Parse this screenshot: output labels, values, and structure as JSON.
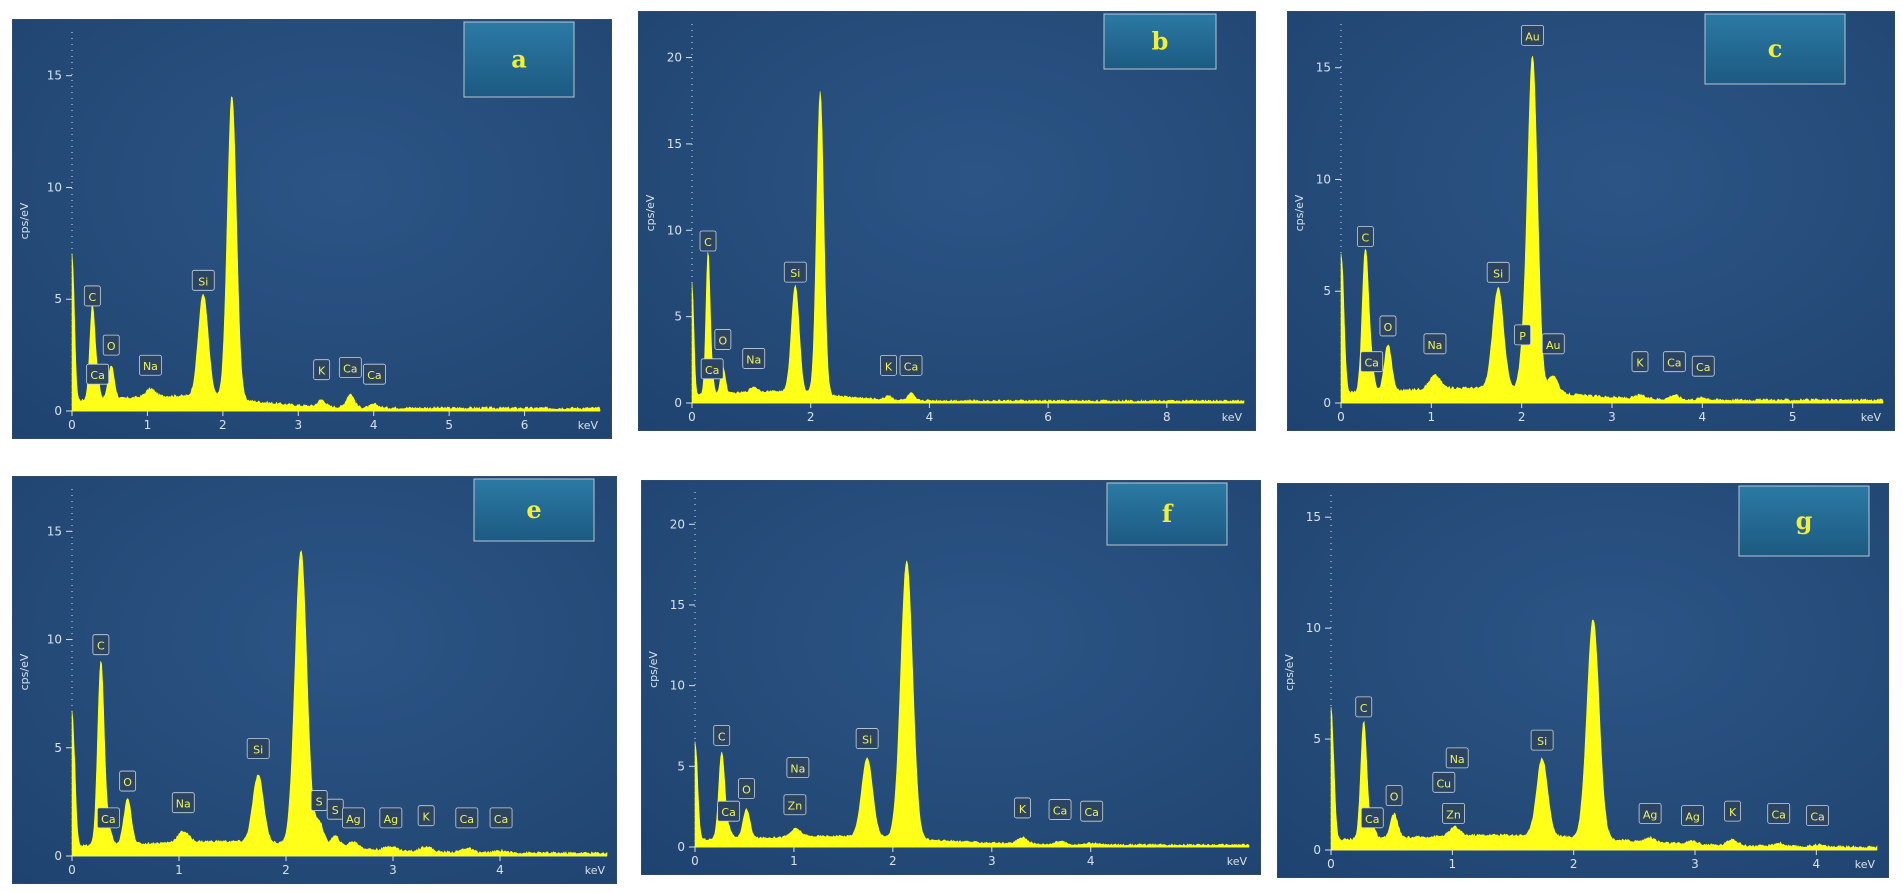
{
  "colors": {
    "background": "#1f4370",
    "spectrum": "#ffff1a",
    "axis": "#d8e0ea",
    "tag_fill": "#2a4462",
    "tag_stroke": "#c9d3de",
    "tag_text": "#f2f261",
    "badge_fill": "#1c5a82",
    "badge_text": "#f2ee3a"
  },
  "chart_data": [
    {
      "id": "a",
      "type": "area",
      "panel_label": "a",
      "ylabel": "cps/eV",
      "xunit": "keV",
      "xlim": [
        0,
        7
      ],
      "ylim": [
        0,
        17
      ],
      "xticks": [
        0,
        1,
        2,
        3,
        4,
        5,
        6
      ],
      "yticks": [
        0,
        5,
        10,
        15
      ],
      "peaks": [
        {
          "x": 0.0,
          "y": 7.0,
          "w": 0.03
        },
        {
          "x": 0.27,
          "y": 4.2,
          "w": 0.035
        },
        {
          "x": 0.34,
          "y": 0.8,
          "w": 0.03
        },
        {
          "x": 0.52,
          "y": 1.5,
          "w": 0.04
        },
        {
          "x": 1.04,
          "y": 0.35,
          "w": 0.06
        },
        {
          "x": 1.74,
          "y": 4.6,
          "w": 0.065
        },
        {
          "x": 2.12,
          "y": 13.6,
          "w": 0.06
        },
        {
          "x": 3.31,
          "y": 0.3,
          "w": 0.05
        },
        {
          "x": 3.69,
          "y": 0.6,
          "w": 0.05
        },
        {
          "x": 4.01,
          "y": 0.15,
          "w": 0.05
        }
      ],
      "tags": [
        {
          "label": "C",
          "x": 0.27,
          "y": 4.7
        },
        {
          "label": "Ca",
          "x": 0.34,
          "y": 1.2
        },
        {
          "label": "O",
          "x": 0.52,
          "y": 2.5
        },
        {
          "label": "Na",
          "x": 1.04,
          "y": 1.6
        },
        {
          "label": "Si",
          "x": 1.74,
          "y": 5.4
        },
        {
          "label": "K",
          "x": 3.31,
          "y": 1.4
        },
        {
          "label": "Ca",
          "x": 3.69,
          "y": 1.5
        },
        {
          "label": "Ca",
          "x": 4.01,
          "y": 1.2
        }
      ]
    },
    {
      "id": "b",
      "type": "area",
      "panel_label": "b",
      "ylabel": "cps/eV",
      "xunit": "keV",
      "xlim": [
        0,
        9.3
      ],
      "ylim": [
        0,
        22
      ],
      "xticks": [
        0,
        2,
        4,
        6,
        8
      ],
      "yticks": [
        0,
        5,
        10,
        15,
        20
      ],
      "peaks": [
        {
          "x": 0.0,
          "y": 7.0,
          "w": 0.03
        },
        {
          "x": 0.27,
          "y": 8.3,
          "w": 0.035
        },
        {
          "x": 0.34,
          "y": 0.8,
          "w": 0.03
        },
        {
          "x": 0.52,
          "y": 1.6,
          "w": 0.04
        },
        {
          "x": 1.04,
          "y": 0.3,
          "w": 0.06
        },
        {
          "x": 1.74,
          "y": 6.2,
          "w": 0.065
        },
        {
          "x": 2.16,
          "y": 17.5,
          "w": 0.06
        },
        {
          "x": 3.31,
          "y": 0.25,
          "w": 0.05
        },
        {
          "x": 3.69,
          "y": 0.4,
          "w": 0.05
        }
      ],
      "tags": [
        {
          "label": "C",
          "x": 0.27,
          "y": 8.8
        },
        {
          "label": "Ca",
          "x": 0.34,
          "y": 1.4
        },
        {
          "label": "O",
          "x": 0.52,
          "y": 3.1
        },
        {
          "label": "Na",
          "x": 1.04,
          "y": 2.0
        },
        {
          "label": "Si",
          "x": 1.74,
          "y": 7.0
        },
        {
          "label": "K",
          "x": 3.31,
          "y": 1.6
        },
        {
          "label": "Ca",
          "x": 3.69,
          "y": 1.6
        }
      ]
    },
    {
      "id": "c",
      "type": "area",
      "panel_label": "c",
      "ylabel": "cps/eV",
      "xunit": "keV",
      "xlim": [
        0,
        6
      ],
      "ylim": [
        0,
        17
      ],
      "xticks": [
        0,
        1,
        2,
        3,
        4,
        5
      ],
      "yticks": [
        0,
        5,
        10,
        15
      ],
      "peaks": [
        {
          "x": 0.0,
          "y": 6.7,
          "w": 0.03
        },
        {
          "x": 0.27,
          "y": 6.4,
          "w": 0.035
        },
        {
          "x": 0.34,
          "y": 1.0,
          "w": 0.03
        },
        {
          "x": 0.52,
          "y": 2.1,
          "w": 0.04
        },
        {
          "x": 1.04,
          "y": 0.6,
          "w": 0.06
        },
        {
          "x": 1.74,
          "y": 4.5,
          "w": 0.06
        },
        {
          "x": 2.01,
          "y": 1.0,
          "w": 0.04
        },
        {
          "x": 2.12,
          "y": 15.0,
          "w": 0.055
        },
        {
          "x": 2.35,
          "y": 0.8,
          "w": 0.05
        },
        {
          "x": 3.31,
          "y": 0.15,
          "w": 0.05
        },
        {
          "x": 3.69,
          "y": 0.2,
          "w": 0.05
        },
        {
          "x": 4.01,
          "y": 0.1,
          "w": 0.05
        }
      ],
      "tags": [
        {
          "label": "Au",
          "x": 2.12,
          "y": 16.0
        },
        {
          "label": "C",
          "x": 0.27,
          "y": 7.0
        },
        {
          "label": "Ca",
          "x": 0.34,
          "y": 1.4
        },
        {
          "label": "O",
          "x": 0.52,
          "y": 3.0
        },
        {
          "label": "Na",
          "x": 1.04,
          "y": 2.2
        },
        {
          "label": "Si",
          "x": 1.74,
          "y": 5.4
        },
        {
          "label": "P",
          "x": 2.01,
          "y": 2.6
        },
        {
          "label": "Au",
          "x": 2.35,
          "y": 2.2
        },
        {
          "label": "K",
          "x": 3.31,
          "y": 1.4
        },
        {
          "label": "Ca",
          "x": 3.69,
          "y": 1.4
        },
        {
          "label": "Ca",
          "x": 4.01,
          "y": 1.2
        }
      ]
    },
    {
      "id": "e",
      "type": "area",
      "panel_label": "e",
      "ylabel": "cps/eV",
      "xunit": "keV",
      "xlim": [
        0,
        5
      ],
      "ylim": [
        0,
        17
      ],
      "xticks": [
        0,
        1,
        2,
        3,
        4
      ],
      "yticks": [
        0,
        5,
        10,
        15
      ],
      "peaks": [
        {
          "x": 0.0,
          "y": 6.7,
          "w": 0.025
        },
        {
          "x": 0.27,
          "y": 8.5,
          "w": 0.03
        },
        {
          "x": 0.34,
          "y": 0.8,
          "w": 0.03
        },
        {
          "x": 0.52,
          "y": 2.1,
          "w": 0.035
        },
        {
          "x": 1.04,
          "y": 0.5,
          "w": 0.05
        },
        {
          "x": 1.74,
          "y": 3.1,
          "w": 0.05
        },
        {
          "x": 2.14,
          "y": 13.6,
          "w": 0.055
        },
        {
          "x": 2.31,
          "y": 1.1,
          "w": 0.04
        },
        {
          "x": 2.46,
          "y": 0.5,
          "w": 0.04
        },
        {
          "x": 2.63,
          "y": 0.3,
          "w": 0.05
        },
        {
          "x": 2.98,
          "y": 0.2,
          "w": 0.05
        },
        {
          "x": 3.31,
          "y": 0.25,
          "w": 0.05
        },
        {
          "x": 3.69,
          "y": 0.2,
          "w": 0.05
        },
        {
          "x": 4.01,
          "y": 0.1,
          "w": 0.05
        }
      ],
      "tags": [
        {
          "label": "C",
          "x": 0.27,
          "y": 9.3
        },
        {
          "label": "Ca",
          "x": 0.34,
          "y": 1.3
        },
        {
          "label": "O",
          "x": 0.52,
          "y": 3.0
        },
        {
          "label": "Na",
          "x": 1.04,
          "y": 2.0
        },
        {
          "label": "Si",
          "x": 1.74,
          "y": 4.5
        },
        {
          "label": "S",
          "x": 2.31,
          "y": 2.1
        },
        {
          "label": "S",
          "x": 2.46,
          "y": 1.7
        },
        {
          "label": "Ag",
          "x": 2.63,
          "y": 1.3
        },
        {
          "label": "Ag",
          "x": 2.98,
          "y": 1.3
        },
        {
          "label": "K",
          "x": 3.31,
          "y": 1.4
        },
        {
          "label": "Ca",
          "x": 3.69,
          "y": 1.3
        },
        {
          "label": "Ca",
          "x": 4.01,
          "y": 1.3
        }
      ]
    },
    {
      "id": "f",
      "type": "area",
      "panel_label": "f",
      "ylabel": "cps/eV",
      "xunit": "keV",
      "xlim": [
        0,
        5.6
      ],
      "ylim": [
        0,
        22
      ],
      "xticks": [
        0,
        1,
        2,
        3,
        4
      ],
      "yticks": [
        0,
        5,
        10,
        15,
        20
      ],
      "peaks": [
        {
          "x": 0.0,
          "y": 6.5,
          "w": 0.025
        },
        {
          "x": 0.27,
          "y": 5.4,
          "w": 0.03
        },
        {
          "x": 0.34,
          "y": 0.6,
          "w": 0.03
        },
        {
          "x": 0.52,
          "y": 1.8,
          "w": 0.035
        },
        {
          "x": 1.02,
          "y": 0.5,
          "w": 0.05
        },
        {
          "x": 1.74,
          "y": 4.9,
          "w": 0.055
        },
        {
          "x": 2.14,
          "y": 17.2,
          "w": 0.06
        },
        {
          "x": 3.31,
          "y": 0.4,
          "w": 0.05
        },
        {
          "x": 3.69,
          "y": 0.2,
          "w": 0.05
        },
        {
          "x": 4.01,
          "y": 0.1,
          "w": 0.05
        }
      ],
      "tags": [
        {
          "label": "C",
          "x": 0.27,
          "y": 6.3
        },
        {
          "label": "Ca",
          "x": 0.34,
          "y": 1.6
        },
        {
          "label": "O",
          "x": 0.52,
          "y": 3.0
        },
        {
          "label": "Zn",
          "x": 1.01,
          "y": 2.0
        },
        {
          "label": "Na",
          "x": 1.04,
          "y": 4.3
        },
        {
          "label": "Si",
          "x": 1.74,
          "y": 6.1
        },
        {
          "label": "K",
          "x": 3.31,
          "y": 1.8
        },
        {
          "label": "Ca",
          "x": 3.69,
          "y": 1.7
        },
        {
          "label": "Ca",
          "x": 4.01,
          "y": 1.6
        }
      ]
    },
    {
      "id": "g",
      "type": "area",
      "panel_label": "g",
      "ylabel": "cps/eV",
      "xunit": "keV",
      "xlim": [
        0,
        4.5
      ],
      "ylim": [
        0,
        16
      ],
      "xticks": [
        0,
        1,
        2,
        3,
        4
      ],
      "yticks": [
        0,
        5,
        10,
        15
      ],
      "peaks": [
        {
          "x": 0.0,
          "y": 6.5,
          "w": 0.022
        },
        {
          "x": 0.27,
          "y": 5.3,
          "w": 0.025
        },
        {
          "x": 0.34,
          "y": 0.6,
          "w": 0.025
        },
        {
          "x": 0.52,
          "y": 1.1,
          "w": 0.03
        },
        {
          "x": 1.02,
          "y": 0.4,
          "w": 0.04
        },
        {
          "x": 1.74,
          "y": 3.5,
          "w": 0.045
        },
        {
          "x": 2.16,
          "y": 9.9,
          "w": 0.05
        },
        {
          "x": 2.63,
          "y": 0.2,
          "w": 0.04
        },
        {
          "x": 2.98,
          "y": 0.15,
          "w": 0.04
        },
        {
          "x": 3.31,
          "y": 0.3,
          "w": 0.04
        },
        {
          "x": 3.69,
          "y": 0.15,
          "w": 0.04
        },
        {
          "x": 4.01,
          "y": 0.1,
          "w": 0.04
        }
      ],
      "tags": [
        {
          "label": "C",
          "x": 0.27,
          "y": 6.0
        },
        {
          "label": "Ca",
          "x": 0.34,
          "y": 1.0
        },
        {
          "label": "O",
          "x": 0.52,
          "y": 2.0
        },
        {
          "label": "Cu",
          "x": 0.93,
          "y": 2.6
        },
        {
          "label": "Na",
          "x": 1.04,
          "y": 3.7
        },
        {
          "label": "Zn",
          "x": 1.01,
          "y": 1.2
        },
        {
          "label": "Si",
          "x": 1.74,
          "y": 4.5
        },
        {
          "label": "Ag",
          "x": 2.63,
          "y": 1.2
        },
        {
          "label": "Ag",
          "x": 2.98,
          "y": 1.1
        },
        {
          "label": "K",
          "x": 3.31,
          "y": 1.3
        },
        {
          "label": "Ca",
          "x": 3.69,
          "y": 1.2
        },
        {
          "label": "Ca",
          "x": 4.01,
          "y": 1.1
        }
      ]
    }
  ]
}
